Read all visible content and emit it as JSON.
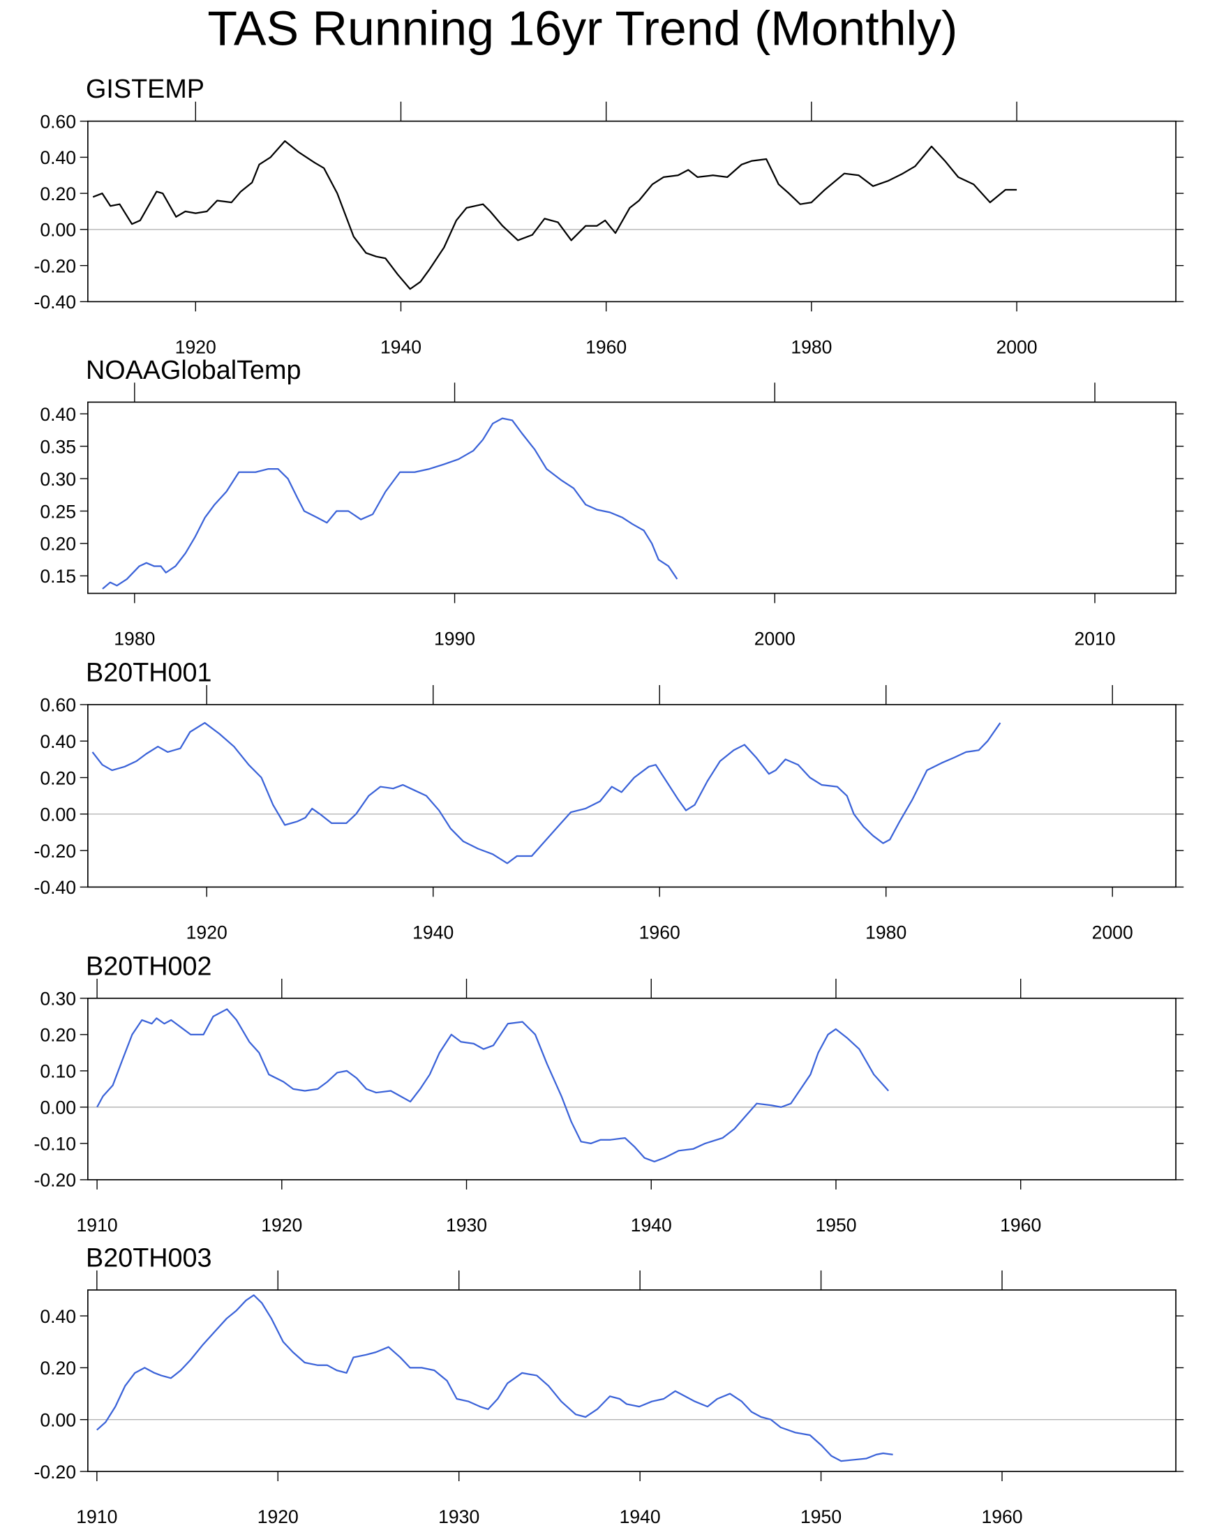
{
  "title": "TAS Running 16yr Trend (Monthly)",
  "chart_data": [
    {
      "type": "line",
      "title": "GISTEMP",
      "xlim": [
        1909.5,
        2015.5
      ],
      "ylim": [
        -0.4,
        0.6
      ],
      "zero_line": true,
      "xticks": [
        1920,
        1940,
        1960,
        1980,
        2000
      ],
      "yticks": [
        {
          "value": -0.4,
          "label": "-0.40"
        },
        {
          "value": -0.2,
          "label": "-0.20"
        },
        {
          "value": 0,
          "label": "0.00"
        },
        {
          "value": 0.2,
          "label": "0.20"
        },
        {
          "value": 0.4,
          "label": "0.40"
        },
        {
          "value": 0.6,
          "label": "0.60"
        }
      ],
      "x": [
        1910.0,
        1910.9,
        1911.7,
        1912.6,
        1913.8,
        1914.6,
        1916.2,
        1916.8,
        1918.1,
        1919.0,
        1920.0,
        1921.1,
        1922.1,
        1923.5,
        1924.4,
        1925.5,
        1926.2,
        1927.3,
        1928.7,
        1930.0,
        1931.6,
        1932.5,
        1933.8,
        1935.4,
        1936.6,
        1937.6,
        1938.5,
        1939.7,
        1940.9,
        1941.9,
        1942.8,
        1944.2,
        1945.4,
        1946.4,
        1948.0,
        1948.7,
        1949.9,
        1951.4,
        1952.8,
        1954.0,
        1955.3,
        1956.6,
        1958.0,
        1959.1,
        1959.9,
        1960.9,
        1962.3,
        1963.2,
        1964.5,
        1965.6,
        1967.0,
        1968.0,
        1968.9,
        1970.4,
        1971.8,
        1973.2,
        1974.2,
        1975.6,
        1976.8,
        1977.8,
        1978.9,
        1980.0,
        1981.3,
        1983.2,
        1984.6,
        1986.0,
        1987.5,
        1988.9,
        1990.1,
        1991.7,
        1993.0,
        1994.3,
        1995.8,
        1997.4,
        1998.9,
        2000.0
      ],
      "series": [
        {
          "color": "#000000",
          "values": [
            0.18,
            0.2,
            0.13,
            0.14,
            0.03,
            0.05,
            0.21,
            0.2,
            0.07,
            0.1,
            0.09,
            0.1,
            0.16,
            0.15,
            0.21,
            0.26,
            0.36,
            0.4,
            0.49,
            0.43,
            0.37,
            0.34,
            0.2,
            -0.04,
            -0.13,
            -0.15,
            -0.16,
            -0.25,
            -0.33,
            -0.29,
            -0.22,
            -0.1,
            0.05,
            0.12,
            0.14,
            0.1,
            0.02,
            -0.06,
            -0.03,
            0.06,
            0.04,
            -0.06,
            0.02,
            0.02,
            0.05,
            -0.02,
            0.12,
            0.16,
            0.25,
            0.29,
            0.3,
            0.33,
            0.29,
            0.3,
            0.29,
            0.36,
            0.38,
            0.39,
            0.25,
            0.2,
            0.14,
            0.15,
            0.22,
            0.31,
            0.3,
            0.24,
            0.27,
            0.31,
            0.35,
            0.46,
            0.38,
            0.29,
            0.25,
            0.15,
            0.22,
            0.22
          ]
        }
      ]
    },
    {
      "type": "line",
      "title": "NOAAGlobalTemp",
      "xlim": [
        1978.54,
        2012.53
      ],
      "ylim": [
        0.123,
        0.418
      ],
      "zero_line": false,
      "xticks": [
        1980,
        1990,
        2000,
        2010
      ],
      "yticks": [
        0.15,
        {
          "value": 0.2,
          "label": "0.20"
        },
        0.25,
        {
          "value": 0.3,
          "label": "0.30"
        },
        0.35,
        {
          "value": 0.4,
          "label": "0.40"
        }
      ],
      "x": [
        1979.0,
        1979.24,
        1979.45,
        1979.76,
        1980.15,
        1980.37,
        1980.61,
        1980.82,
        1980.98,
        1981.28,
        1981.59,
        1981.89,
        1982.2,
        1982.5,
        1982.87,
        1983.26,
        1983.78,
        1984.18,
        1984.48,
        1984.79,
        1985.09,
        1985.3,
        1985.7,
        1986.01,
        1986.31,
        1986.68,
        1987.07,
        1987.44,
        1987.84,
        1988.29,
        1988.75,
        1989.21,
        1989.66,
        1990.12,
        1990.58,
        1990.88,
        1991.19,
        1991.49,
        1991.8,
        1992.1,
        1992.5,
        1992.87,
        1993.32,
        1993.72,
        1994.09,
        1994.45,
        1994.85,
        1995.24,
        1995.55,
        1995.91,
        1996.16,
        1996.37,
        1996.68,
        1996.95
      ],
      "series": [
        {
          "color": "#3a62d8",
          "values": [
            0.13,
            0.14,
            0.135,
            0.145,
            0.165,
            0.17,
            0.165,
            0.165,
            0.155,
            0.165,
            0.185,
            0.21,
            0.24,
            0.26,
            0.28,
            0.31,
            0.31,
            0.315,
            0.315,
            0.3,
            0.27,
            0.25,
            0.24,
            0.232,
            0.25,
            0.25,
            0.237,
            0.245,
            0.28,
            0.31,
            0.31,
            0.315,
            0.322,
            0.33,
            0.343,
            0.36,
            0.385,
            0.393,
            0.39,
            0.37,
            0.345,
            0.315,
            0.298,
            0.285,
            0.26,
            0.252,
            0.248,
            0.24,
            0.23,
            0.22,
            0.2,
            0.175,
            0.165,
            0.145
          ]
        }
      ]
    },
    {
      "type": "line",
      "title": "B20TH001",
      "xlim": [
        1909.5,
        2005.6
      ],
      "ylim": [
        -0.4,
        0.6
      ],
      "zero_line": true,
      "xticks": [
        1920,
        1940,
        1960,
        1980,
        2000
      ],
      "yticks": [
        {
          "value": -0.4,
          "label": "-0.40"
        },
        {
          "value": -0.2,
          "label": "-0.20"
        },
        {
          "value": 0,
          "label": "0.00"
        },
        {
          "value": 0.2,
          "label": "0.20"
        },
        {
          "value": 0.4,
          "label": "0.40"
        },
        {
          "value": 0.6,
          "label": "0.60"
        }
      ],
      "x": [
        1909.91,
        1910.78,
        1911.64,
        1912.76,
        1913.79,
        1914.66,
        1915.69,
        1916.55,
        1917.67,
        1918.53,
        1919.83,
        1921.12,
        1922.41,
        1923.71,
        1924.83,
        1925.86,
        1926.9,
        1928.02,
        1928.71,
        1929.31,
        1930.0,
        1931.03,
        1932.33,
        1933.19,
        1934.31,
        1935.34,
        1936.47,
        1937.33,
        1938.36,
        1939.4,
        1940.52,
        1941.55,
        1942.67,
        1943.97,
        1945.26,
        1946.55,
        1947.41,
        1948.71,
        1950.0,
        1951.29,
        1952.16,
        1953.45,
        1954.74,
        1955.78,
        1956.64,
        1957.76,
        1959.05,
        1959.66,
        1960.6,
        1961.64,
        1962.33,
        1963.1,
        1964.22,
        1965.34,
        1966.55,
        1967.5,
        1968.53,
        1969.66,
        1970.26,
        1971.12,
        1972.24,
        1973.28,
        1974.31,
        1975.69,
        1976.55,
        1977.16,
        1978.02,
        1978.88,
        1979.74,
        1980.34,
        1981.21,
        1982.33,
        1983.62,
        1984.91,
        1986.03,
        1987.07,
        1988.19,
        1988.97,
        1990.09
      ],
      "series": [
        {
          "color": "#3a62d8",
          "values": [
            0.34,
            0.27,
            0.24,
            0.26,
            0.29,
            0.33,
            0.37,
            0.34,
            0.36,
            0.45,
            0.5,
            0.44,
            0.37,
            0.27,
            0.2,
            0.05,
            -0.06,
            -0.04,
            -0.02,
            0.03,
            0.0,
            -0.05,
            -0.05,
            0.0,
            0.1,
            0.15,
            0.14,
            0.16,
            0.13,
            0.1,
            0.02,
            -0.08,
            -0.15,
            -0.19,
            -0.22,
            -0.27,
            -0.23,
            -0.23,
            -0.14,
            -0.05,
            0.01,
            0.03,
            0.07,
            0.15,
            0.12,
            0.2,
            0.26,
            0.27,
            0.18,
            0.08,
            0.02,
            0.05,
            0.18,
            0.29,
            0.35,
            0.38,
            0.31,
            0.22,
            0.24,
            0.3,
            0.27,
            0.2,
            0.16,
            0.15,
            0.1,
            0.0,
            -0.07,
            -0.12,
            -0.16,
            -0.14,
            -0.04,
            0.08,
            0.24,
            0.28,
            0.31,
            0.34,
            0.35,
            0.4,
            0.5
          ]
        }
      ]
    },
    {
      "type": "line",
      "title": "B20TH002",
      "xlim": [
        1909.5,
        1968.4
      ],
      "ylim": [
        -0.2,
        0.3
      ],
      "zero_line": true,
      "xticks": [
        1910,
        1920,
        1930,
        1940,
        1950,
        1960
      ],
      "yticks": [
        {
          "value": -0.2,
          "label": "-0.20"
        },
        {
          "value": -0.1,
          "label": "-0.10"
        },
        {
          "value": 0,
          "label": "0.00"
        },
        {
          "value": 0.1,
          "label": "0.10"
        },
        {
          "value": 0.2,
          "label": "0.20"
        },
        {
          "value": 0.3,
          "label": "0.30"
        }
      ],
      "x": [
        1910.0,
        1910.32,
        1910.85,
        1911.37,
        1911.9,
        1912.43,
        1912.96,
        1913.22,
        1913.64,
        1914.01,
        1914.54,
        1915.07,
        1915.76,
        1916.29,
        1917.03,
        1917.55,
        1918.24,
        1918.77,
        1919.3,
        1920.09,
        1920.62,
        1921.25,
        1921.94,
        1922.47,
        1923.0,
        1923.52,
        1924.05,
        1924.58,
        1925.11,
        1925.9,
        1926.43,
        1926.96,
        1927.49,
        1928.01,
        1928.54,
        1929.18,
        1929.7,
        1930.39,
        1930.92,
        1931.45,
        1932.24,
        1933.03,
        1933.72,
        1934.35,
        1935.14,
        1935.67,
        1936.2,
        1936.73,
        1937.26,
        1937.79,
        1938.58,
        1939.11,
        1939.64,
        1940.17,
        1940.7,
        1941.49,
        1942.28,
        1942.92,
        1943.86,
        1944.5,
        1945.19,
        1945.71,
        1946.5,
        1947.03,
        1947.56,
        1948.09,
        1948.62,
        1949.04,
        1949.57,
        1949.99,
        1950.62,
        1951.26,
        1952.05,
        1952.84
      ],
      "series": [
        {
          "color": "#3a62d8",
          "values": [
            0.0,
            0.03,
            0.06,
            0.13,
            0.2,
            0.24,
            0.23,
            0.245,
            0.23,
            0.24,
            0.22,
            0.2,
            0.2,
            0.25,
            0.27,
            0.24,
            0.18,
            0.15,
            0.09,
            0.07,
            0.05,
            0.045,
            0.05,
            0.07,
            0.095,
            0.1,
            0.08,
            0.05,
            0.04,
            0.045,
            0.03,
            0.015,
            0.05,
            0.09,
            0.15,
            0.2,
            0.18,
            0.175,
            0.16,
            0.17,
            0.23,
            0.235,
            0.2,
            0.12,
            0.03,
            -0.04,
            -0.095,
            -0.1,
            -0.09,
            -0.09,
            -0.085,
            -0.11,
            -0.14,
            -0.15,
            -0.14,
            -0.12,
            -0.115,
            -0.1,
            -0.085,
            -0.06,
            -0.02,
            0.01,
            0.005,
            0.0,
            0.01,
            0.05,
            0.09,
            0.15,
            0.2,
            0.215,
            0.19,
            0.16,
            0.09,
            0.045
          ]
        }
      ]
    },
    {
      "type": "line",
      "title": "B20TH003",
      "xlim": [
        1909.5,
        1969.6
      ],
      "ylim": [
        -0.2,
        0.5
      ],
      "zero_line": true,
      "xticks": [
        1910,
        1920,
        1930,
        1940,
        1950,
        1960
      ],
      "yticks": [
        {
          "value": -0.2,
          "label": "-0.20"
        },
        {
          "value": 0,
          "label": "0.00"
        },
        {
          "value": 0.2,
          "label": "0.20"
        },
        {
          "value": 0.4,
          "label": "0.40"
        }
      ],
      "x": [
        1910.0,
        1910.48,
        1911.02,
        1911.56,
        1912.1,
        1912.64,
        1913.18,
        1913.56,
        1914.09,
        1914.63,
        1915.17,
        1915.87,
        1916.52,
        1917.17,
        1917.7,
        1918.24,
        1918.67,
        1919.11,
        1919.64,
        1920.29,
        1920.83,
        1921.48,
        1922.18,
        1922.72,
        1923.25,
        1923.79,
        1924.17,
        1924.87,
        1925.41,
        1926.11,
        1926.76,
        1927.3,
        1927.94,
        1928.64,
        1929.34,
        1929.88,
        1930.53,
        1931.17,
        1931.61,
        1932.14,
        1932.68,
        1933.49,
        1934.3,
        1934.95,
        1935.65,
        1936.45,
        1936.99,
        1937.64,
        1938.34,
        1938.88,
        1939.26,
        1939.96,
        1940.66,
        1941.31,
        1941.95,
        1942.49,
        1943.03,
        1943.73,
        1944.27,
        1944.97,
        1945.62,
        1946.16,
        1946.69,
        1947.23,
        1947.77,
        1948.58,
        1949.39,
        1950.03,
        1950.57,
        1951.11,
        1951.81,
        1952.51,
        1953.05,
        1953.43,
        1953.97
      ],
      "series": [
        {
          "color": "#3a62d8",
          "values": [
            -0.04,
            -0.01,
            0.05,
            0.13,
            0.18,
            0.2,
            0.18,
            0.17,
            0.16,
            0.19,
            0.23,
            0.29,
            0.34,
            0.39,
            0.42,
            0.46,
            0.48,
            0.45,
            0.39,
            0.3,
            0.26,
            0.22,
            0.21,
            0.21,
            0.19,
            0.18,
            0.24,
            0.25,
            0.26,
            0.28,
            0.24,
            0.2,
            0.2,
            0.19,
            0.15,
            0.08,
            0.07,
            0.05,
            0.04,
            0.08,
            0.14,
            0.18,
            0.17,
            0.13,
            0.07,
            0.02,
            0.01,
            0.04,
            0.09,
            0.08,
            0.06,
            0.05,
            0.07,
            0.08,
            0.11,
            0.09,
            0.07,
            0.05,
            0.08,
            0.1,
            0.07,
            0.03,
            0.01,
            0.0,
            -0.03,
            -0.05,
            -0.06,
            -0.1,
            -0.14,
            -0.16,
            -0.155,
            -0.15,
            -0.135,
            -0.13,
            -0.135
          ]
        }
      ]
    }
  ]
}
